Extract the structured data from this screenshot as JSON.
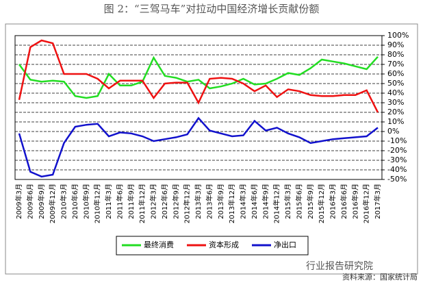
{
  "chart_data": {
    "type": "line",
    "title": "图 2：“三驾马车”对拉动中国经济增长贡献份额",
    "categories": [
      "2009年3月",
      "2009年6月",
      "2009年9月",
      "2009年12月",
      "2010年3月",
      "2010年6月",
      "2010年9月",
      "2010年12月",
      "2011年3月",
      "2011年6月",
      "2011年9月",
      "2011年12月",
      "2012年3月",
      "2012年6月",
      "2012年9月",
      "2012年12月",
      "2013年3月",
      "2013年6月",
      "2013年9月",
      "2013年12月",
      "2014年3月",
      "2014年6月",
      "2014年9月",
      "2014年12月",
      "2015年3月",
      "2015年6月",
      "2015年9月",
      "2015年12月",
      "2016年3月",
      "2016年6月",
      "2016年9月",
      "2016年12月",
      "2017年3月"
    ],
    "series": [
      {
        "name": "最终消费",
        "color": "#22dd22",
        "values": [
          70,
          54,
          52,
          53,
          52,
          37,
          35,
          37,
          60,
          48,
          48,
          52,
          77,
          58,
          56,
          52,
          54,
          45,
          47,
          50,
          55,
          49,
          50,
          55,
          61,
          59,
          66,
          75,
          73,
          71,
          68,
          65,
          78
        ]
      },
      {
        "name": "资本形成",
        "color": "#ee1111",
        "values": [
          33,
          88,
          95,
          92,
          60,
          60,
          60,
          55,
          45,
          53,
          53,
          53,
          35,
          50,
          51,
          51,
          30,
          55,
          56,
          55,
          50,
          42,
          48,
          36,
          44,
          42,
          38,
          37,
          37,
          38,
          38,
          43,
          20
        ]
      },
      {
        "name": "净出口",
        "color": "#1111cc",
        "values": [
          -2,
          -42,
          -47,
          -45,
          -12,
          5,
          7,
          8,
          -5,
          -1,
          -2,
          -5,
          -10,
          -8,
          -6,
          -3,
          14,
          1,
          -2,
          -5,
          -4,
          11,
          1,
          4,
          -2,
          -6,
          -12,
          -10,
          -8,
          -7,
          -6,
          -5,
          4
        ]
      }
    ],
    "ylim": [
      -50,
      100
    ],
    "yticks": [
      {
        "value": 100,
        "label": "100%"
      },
      {
        "value": 90,
        "label": "90%"
      },
      {
        "value": 80,
        "label": "80%"
      },
      {
        "value": 70,
        "label": "70%"
      },
      {
        "value": 60,
        "label": "60%"
      },
      {
        "value": 50,
        "label": "50%"
      },
      {
        "value": 40,
        "label": "40%"
      },
      {
        "value": 30,
        "label": "30%"
      },
      {
        "value": 20,
        "label": "20%"
      },
      {
        "value": 10,
        "label": "10%"
      },
      {
        "value": 0,
        "label": "0%"
      },
      {
        "value": -10,
        "label": "-10%"
      },
      {
        "value": -20,
        "label": "-20%"
      },
      {
        "value": -30,
        "label": "-30%"
      },
      {
        "value": -40,
        "label": "-40%"
      },
      {
        "value": -50,
        "label": "-50%"
      }
    ],
    "grid": true,
    "legend": "bottom",
    "watermark": "行业报告研究院",
    "source": "资料来源：国家统计局"
  }
}
